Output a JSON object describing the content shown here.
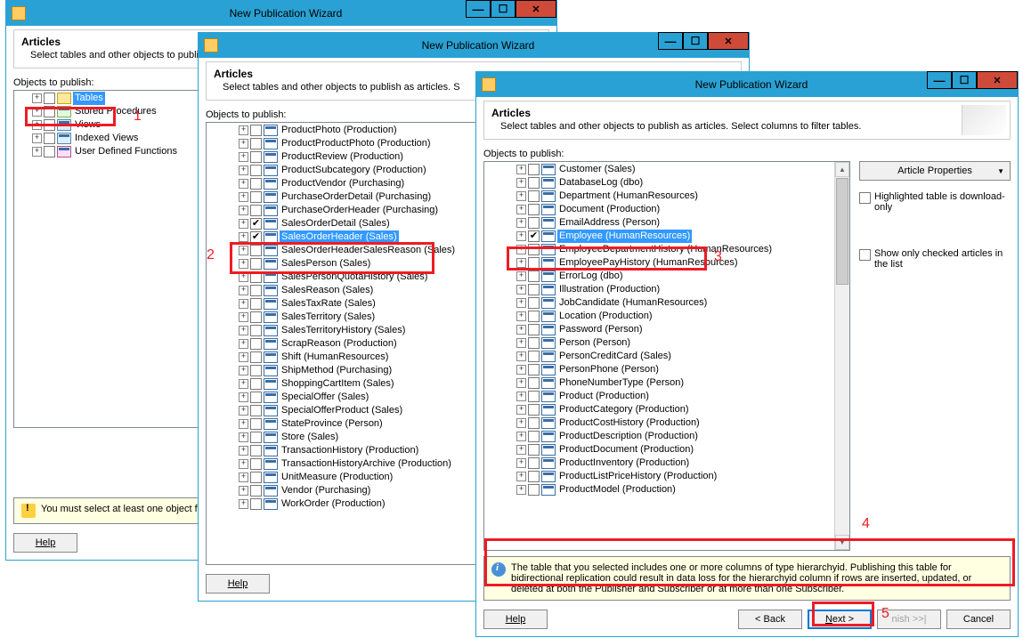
{
  "window_title": "New Publication Wizard",
  "header": {
    "title": "Articles",
    "subtitle_short": "Select tables and other objects to publi",
    "subtitle_mid": "Select tables and other objects to publish as articles.  S",
    "subtitle_full": "Select tables and other objects to publish as articles. Select columns to filter tables."
  },
  "label_objects": "Objects to publish:",
  "w1": {
    "rows": [
      {
        "label": "Tables",
        "icon": "folder",
        "selected": true
      },
      {
        "label": "Stored Procedures",
        "icon": "sp"
      },
      {
        "label": "Views",
        "icon": "view"
      },
      {
        "label": "Indexed Views",
        "icon": "view"
      },
      {
        "label": "User Defined Functions",
        "icon": "fn"
      }
    ],
    "warning": "You must select at least one object fo",
    "help": "Help"
  },
  "w2": {
    "rows": [
      {
        "label": "ProductPhoto (Production)"
      },
      {
        "label": "ProductProductPhoto (Production)"
      },
      {
        "label": "ProductReview (Production)"
      },
      {
        "label": "ProductSubcategory (Production)"
      },
      {
        "label": "ProductVendor (Purchasing)"
      },
      {
        "label": "PurchaseOrderDetail (Purchasing)"
      },
      {
        "label": "PurchaseOrderHeader (Purchasing)"
      },
      {
        "label": "SalesOrderDetail (Sales)",
        "checked": true
      },
      {
        "label": "SalesOrderHeader (Sales)",
        "checked": true,
        "selected": true
      },
      {
        "label": "SalesOrderHeaderSalesReason (Sales)"
      },
      {
        "label": "SalesPerson (Sales)"
      },
      {
        "label": "SalesPersonQuotaHistory (Sales)"
      },
      {
        "label": "SalesReason (Sales)"
      },
      {
        "label": "SalesTaxRate (Sales)"
      },
      {
        "label": "SalesTerritory (Sales)"
      },
      {
        "label": "SalesTerritoryHistory (Sales)"
      },
      {
        "label": "ScrapReason (Production)"
      },
      {
        "label": "Shift (HumanResources)"
      },
      {
        "label": "ShipMethod (Purchasing)"
      },
      {
        "label": "ShoppingCartItem (Sales)"
      },
      {
        "label": "SpecialOffer (Sales)"
      },
      {
        "label": "SpecialOfferProduct (Sales)"
      },
      {
        "label": "StateProvince (Person)"
      },
      {
        "label": "Store (Sales)"
      },
      {
        "label": "TransactionHistory (Production)"
      },
      {
        "label": "TransactionHistoryArchive (Production)"
      },
      {
        "label": "UnitMeasure (Production)"
      },
      {
        "label": "Vendor (Purchasing)"
      },
      {
        "label": "WorkOrder (Production)"
      }
    ],
    "help": "Help"
  },
  "w3": {
    "rows": [
      {
        "label": "Customer (Sales)"
      },
      {
        "label": "DatabaseLog (dbo)"
      },
      {
        "label": "Department (HumanResources)"
      },
      {
        "label": "Document (Production)"
      },
      {
        "label": "EmailAddress (Person)"
      },
      {
        "label": "Employee (HumanResources)",
        "checked": true,
        "selected": true
      },
      {
        "label": "EmployeeDepartmentHistory (HumanResources)"
      },
      {
        "label": "EmployeePayHistory (HumanResources)"
      },
      {
        "label": "ErrorLog (dbo)"
      },
      {
        "label": "Illustration (Production)"
      },
      {
        "label": "JobCandidate (HumanResources)"
      },
      {
        "label": "Location (Production)"
      },
      {
        "label": "Password (Person)"
      },
      {
        "label": "Person (Person)"
      },
      {
        "label": "PersonCreditCard (Sales)"
      },
      {
        "label": "PersonPhone (Person)"
      },
      {
        "label": "PhoneNumberType (Person)"
      },
      {
        "label": "Product (Production)"
      },
      {
        "label": "ProductCategory (Production)"
      },
      {
        "label": "ProductCostHistory (Production)"
      },
      {
        "label": "ProductDescription (Production)"
      },
      {
        "label": "ProductDocument (Production)"
      },
      {
        "label": "ProductInventory (Production)"
      },
      {
        "label": "ProductListPriceHistory (Production)"
      },
      {
        "label": "ProductModel (Production)"
      }
    ],
    "side": {
      "props": "Article Properties",
      "highlighted": "Highlighted table is download-only",
      "showonly": "Show only checked articles in the list"
    },
    "info": "The table that you selected includes one or more columns of type hierarchyid. Publishing this table for bidirectional replication could result in data loss for the hierarchyid column if rows are inserted, updated, or deleted at both the Publisher and Subscriber or at more than one Subscriber.",
    "buttons": {
      "help": "Help",
      "back": "< Back",
      "next": "Next >",
      "finish": "nish >>|",
      "cancel": "Cancel"
    }
  },
  "callouts": {
    "c1": "1",
    "c2": "2",
    "c3": "3",
    "c4": "4",
    "c5": "5"
  }
}
